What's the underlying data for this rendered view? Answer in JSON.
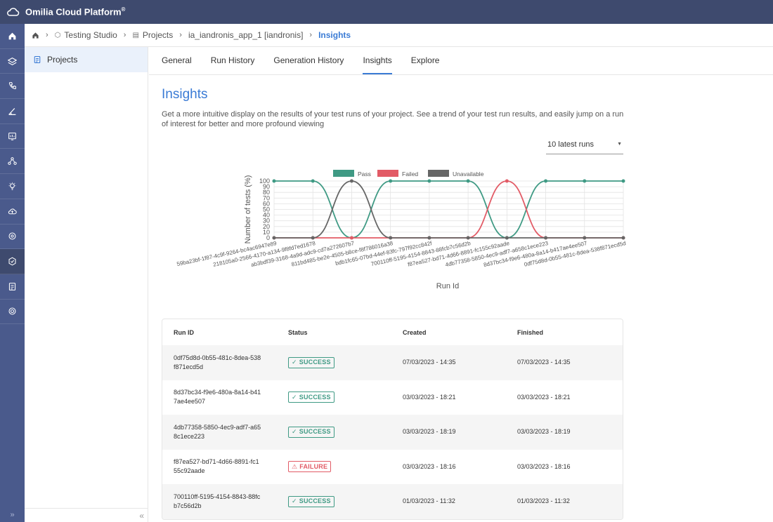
{
  "app": {
    "title": "Omilia Cloud Platform",
    "trademark": "®"
  },
  "breadcrumb": {
    "items": [
      {
        "label": "Testing Studio"
      },
      {
        "label": "Projects"
      },
      {
        "label": "ia_iandronis_app_1 [iandronis]"
      },
      {
        "label": "Insights"
      }
    ]
  },
  "sidebar": {
    "projects_label": "Projects"
  },
  "tabs": [
    {
      "label": "General"
    },
    {
      "label": "Run History"
    },
    {
      "label": "Generation History"
    },
    {
      "label": "Insights"
    },
    {
      "label": "Explore"
    }
  ],
  "page": {
    "title": "Insights",
    "description": "Get a more intuitive display on the results of your test runs of your project. See a trend of your test run results, and easily jump on a run of interest for better and more profound viewing"
  },
  "runs_select": {
    "value": "10 latest runs"
  },
  "chart_data": {
    "type": "line",
    "xlabel": "Run Id",
    "ylabel": "Number of tests (%)",
    "ylim": [
      0,
      100
    ],
    "yticks": [
      0,
      10,
      20,
      30,
      40,
      50,
      60,
      70,
      80,
      90,
      100
    ],
    "legend_position": "top",
    "grid": true,
    "x": [
      "59ba23bf-1f87-4c9f-9264-bc4ac6947e89",
      "218105a0-2566-4170-a134-9f8fd7ed1678",
      "ab3bdf39-3168-4a9d-adc9-cd7a272607b7",
      "811bd485-be2e-4505-b8ce-f8f786016a38",
      "bdb1fc65-07bd-44ef-83fc-797f92cc842f",
      "700110ff-5195-4154-8843-88fcb7c56d2b",
      "f87ea527-bd71-4d66-8891-fc155c92aade",
      "4db77358-5850-4ec9-adf7-a658c1ece223",
      "8d37bc34-f9e6-480a-8a14-b417ae4ee507",
      "0df75d8d-0b55-481c-8dea-538f871ecd5d"
    ],
    "series": [
      {
        "name": "Pass",
        "color": "#3f9a84",
        "values": [
          100,
          100,
          0,
          100,
          100,
          100,
          0,
          100,
          100,
          100
        ]
      },
      {
        "name": "Failed",
        "color": "#e25b66",
        "values": [
          0,
          0,
          0,
          0,
          0,
          0,
          100,
          0,
          0,
          0
        ]
      },
      {
        "name": "Unavailable",
        "color": "#666666",
        "values": [
          0,
          0,
          100,
          0,
          0,
          0,
          0,
          0,
          0,
          0
        ]
      }
    ]
  },
  "table": {
    "headers": {
      "run_id": "Run ID",
      "status": "Status",
      "created": "Created",
      "finished": "Finished"
    },
    "rows": [
      {
        "run_id": "0df75d8d-0b55-481c-8dea-538f871ecd5d",
        "status": "SUCCESS",
        "created": "07/03/2023 - 14:35",
        "finished": "07/03/2023 - 14:35"
      },
      {
        "run_id": "8d37bc34-f9e6-480a-8a14-b417ae4ee507",
        "status": "SUCCESS",
        "created": "03/03/2023 - 18:21",
        "finished": "03/03/2023 - 18:21"
      },
      {
        "run_id": "4db77358-5850-4ec9-adf7-a658c1ece223",
        "status": "SUCCESS",
        "created": "03/03/2023 - 18:19",
        "finished": "03/03/2023 - 18:19"
      },
      {
        "run_id": "f87ea527-bd71-4d66-8891-fc155c92aade",
        "status": "FAILURE",
        "created": "03/03/2023 - 18:16",
        "finished": "03/03/2023 - 18:16"
      },
      {
        "run_id": "700110ff-5195-4154-8843-88fcb7c56d2b",
        "status": "SUCCESS",
        "created": "01/03/2023 - 11:32",
        "finished": "01/03/2023 - 11:32"
      }
    ]
  },
  "colors": {
    "topbar": "#3e4a6e",
    "rail": "#4a5a8c",
    "accent": "#3a7bd5",
    "success": "#3f9a84",
    "failure": "#e25b66"
  }
}
